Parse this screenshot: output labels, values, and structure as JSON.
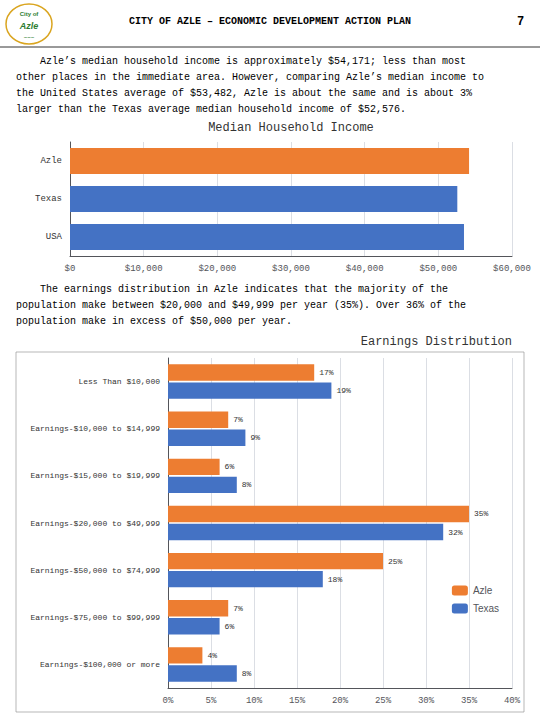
{
  "title": "CITY OF AZLE – ECONOMIC DEVELOPMENT ACTION PLAN",
  "page": "7",
  "logo": [
    "City of",
    "Azle",
    "~~~"
  ],
  "paragraphs": [
    [
      "    Azle’s median household income is approximately $54,171; less than most",
      "other places in the immediate area. However, comparing Azle’s median income to",
      "the United States average of $53,482, Azle is about the same and is about 3%",
      "larger than the Texas average median household income of $52,576."
    ],
    [
      "    The earnings distribution in Azle indicates that the majority of the",
      "population make between $20,000 and $49,999 per year (35%). Over 36% of the",
      "population make in excess of $50,000 per year."
    ]
  ],
  "chart_data": [
    {
      "type": "bar",
      "title": "Median Household Income",
      "orientation": "horizontal",
      "categories": [
        "USA",
        "Texas",
        "Azle"
      ],
      "values": [
        53482,
        52576,
        54171
      ],
      "colors": [
        "#4472C4",
        "#4472C4",
        "#ED7D31"
      ],
      "xlim": [
        0,
        60000
      ],
      "xticks": [
        {
          "value": 0,
          "label": "$0"
        },
        {
          "value": 10000,
          "label": "$10,000"
        },
        {
          "value": 20000,
          "label": "$20,000"
        },
        {
          "value": 30000,
          "label": "$30,000"
        },
        {
          "value": 40000,
          "label": "$40,000"
        },
        {
          "value": 50000,
          "label": "$50,000"
        },
        {
          "value": 60000,
          "label": "$60,000"
        }
      ],
      "grid": true
    },
    {
      "type": "bar",
      "title": "Earnings Distribution",
      "orientation": "horizontal",
      "categories": [
        "Earnings-$100,000 or more",
        "Earnings-$75,000 to $99,999",
        "Earnings-$50,000 to $74,999",
        "Earnings-$20,000 to $49,999",
        "Earnings-$15,000 to $19,999",
        "Earnings-$10,000 to $14,999",
        "Less Than $10,000"
      ],
      "series": [
        {
          "name": "Azle",
          "color": "#ED7D31",
          "values": [
            4,
            7,
            25,
            35,
            6,
            7,
            17
          ],
          "value_labels": [
            "4%",
            "7%",
            "25%",
            "35%",
            "6%",
            "7%",
            "17%"
          ]
        },
        {
          "name": "Texas",
          "color": "#4472C4",
          "values": [
            8,
            6,
            18,
            32,
            8,
            9,
            19
          ],
          "value_labels": [
            "8%",
            "6%",
            "18%",
            "32%",
            "8%",
            "9%",
            "19%"
          ]
        }
      ],
      "xlim": [
        0,
        40
      ],
      "xticks": [
        {
          "value": 0,
          "label": "0%"
        },
        {
          "value": 5,
          "label": "5%"
        },
        {
          "value": 10,
          "label": "10%"
        },
        {
          "value": 15,
          "label": "15%"
        },
        {
          "value": 20,
          "label": "20%"
        },
        {
          "value": 25,
          "label": "25%"
        },
        {
          "value": 30,
          "label": "30%"
        },
        {
          "value": 35,
          "label": "35%"
        },
        {
          "value": 40,
          "label": "40%"
        }
      ],
      "grid": true,
      "legend": "lower right",
      "data_labels": true
    }
  ]
}
